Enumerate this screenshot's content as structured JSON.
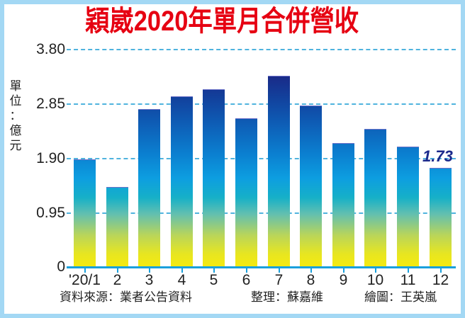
{
  "title": "穎崴2020年單月合併營收",
  "unit_label": [
    "單",
    "位",
    "：",
    "億",
    "元"
  ],
  "y_ticks": [
    "3.80",
    "2.85",
    "1.90",
    "0.95",
    "0"
  ],
  "value_label": "1.73",
  "footer": {
    "source": "資料來源：業者公告資料",
    "editor": "整理：蘇嘉維",
    "illustrator": "繪圖：王英嵐"
  },
  "colors": {
    "title": "#e60012",
    "border": "#a3d8f4",
    "grid": "#4fb3de",
    "bar_top": "#1a2a88",
    "bar_bottom": "#f5ea10",
    "value_label": "#1b2a8c"
  },
  "chart_data": {
    "type": "bar",
    "title": "穎崴2020年單月合併營收",
    "xlabel": "",
    "ylabel": "單位：億元",
    "categories": [
      "'20/1",
      "2",
      "3",
      "4",
      "5",
      "6",
      "7",
      "8",
      "9",
      "10",
      "11",
      "12"
    ],
    "values": [
      1.87,
      1.39,
      2.75,
      2.97,
      3.1,
      2.59,
      3.33,
      2.81,
      2.16,
      2.41,
      2.1,
      1.73
    ],
    "ylim": [
      0,
      3.8
    ],
    "yticks": [
      0,
      0.95,
      1.9,
      2.85,
      3.8
    ],
    "grid": true,
    "grid_style": "dashed horizontal",
    "legend": null,
    "annotations": [
      {
        "category": "12",
        "text": "1.73"
      }
    ],
    "source": "資料來源：業者公告資料"
  }
}
